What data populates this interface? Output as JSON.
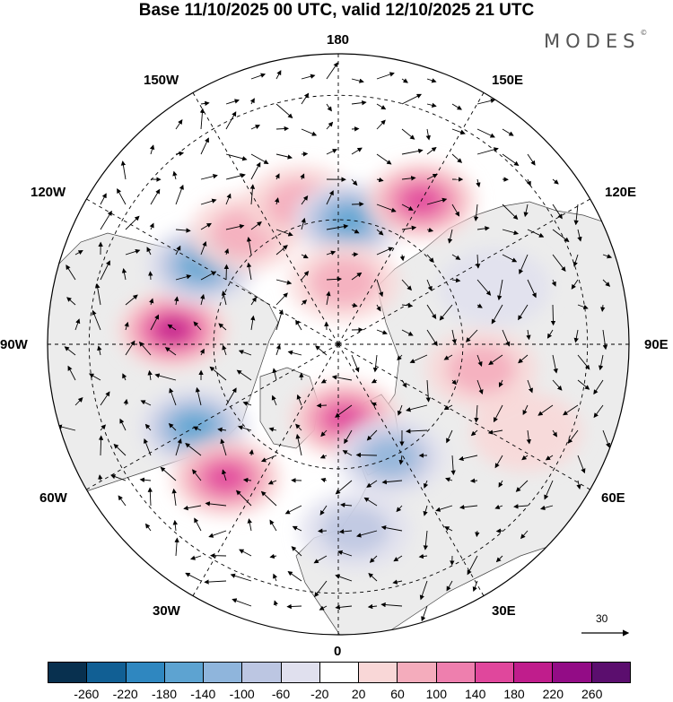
{
  "title": "Base 11/10/2025 00 UTC, valid 12/10/2025 21 UTC",
  "logo": {
    "text": "MODES",
    "mark": "©"
  },
  "longitude_labels": {
    "lon_180": "180",
    "lon_150e": "150E",
    "lon_120e": "120E",
    "lon_90e": "90E",
    "lon_60e": "60E",
    "lon_30e": "30E",
    "lon_0": "0",
    "lon_30w": "30W",
    "lon_60w": "60W",
    "lon_90w": "90W",
    "lon_120w": "120W",
    "lon_150w": "150W"
  },
  "reference_vector": {
    "value": "30"
  },
  "colorbar": {
    "colors": [
      "#08304f",
      "#115f94",
      "#2f87c0",
      "#5da3d1",
      "#8fb5dc",
      "#bcc6e2",
      "#e0e0ee",
      "#ffffff",
      "#f9d7d7",
      "#f4acbc",
      "#ee7fae",
      "#e0479c",
      "#c01d8c",
      "#930c86",
      "#5b0e6e"
    ],
    "ticks": [
      "-260",
      "-220",
      "-180",
      "-140",
      "-100",
      "-60",
      "-20",
      "20",
      "60",
      "100",
      "140",
      "180",
      "220",
      "260"
    ]
  },
  "map": {
    "anomalies": [
      {
        "lon": -95,
        "lat": 50,
        "value": 210
      },
      {
        "lon": -60,
        "lat": 50,
        "value": -150
      },
      {
        "lon": -40,
        "lat": 48,
        "value": 170
      },
      {
        "lon": -120,
        "lat": 52,
        "value": -140
      },
      {
        "lon": -140,
        "lat": 55,
        "value": 80
      },
      {
        "lon": -165,
        "lat": 55,
        "value": 70
      },
      {
        "lon": 175,
        "lat": 60,
        "value": -150
      },
      {
        "lon": 150,
        "lat": 50,
        "value": 170
      },
      {
        "lon": 5,
        "lat": 72,
        "value": 160
      },
      {
        "lon": 25,
        "lat": 60,
        "value": -100
      },
      {
        "lon": 5,
        "lat": 45,
        "value": -90
      },
      {
        "lon": 80,
        "lat": 55,
        "value": 80
      },
      {
        "lon": 110,
        "lat": 50,
        "value": -40
      },
      {
        "lon": 175,
        "lat": 75,
        "value": 60
      },
      {
        "lon": 65,
        "lat": 40,
        "value": 40
      }
    ]
  }
}
